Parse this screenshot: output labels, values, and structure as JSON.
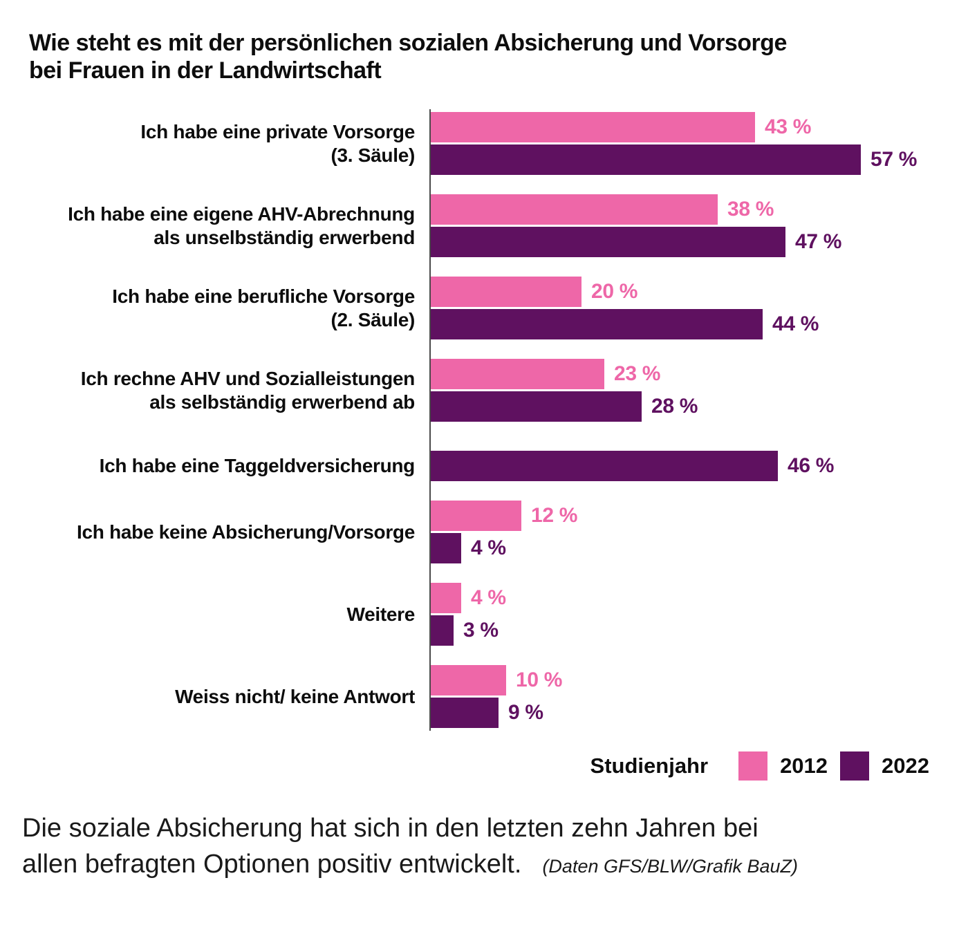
{
  "title": "Wie steht es mit der persönlichen sozialen Absicherung und Vorsorge\nbei Frauen in der Landwirtschaft",
  "chart_data": {
    "type": "bar",
    "orientation": "horizontal",
    "title": "Wie steht es mit der persönlichen sozialen Absicherung und Vorsorge bei Frauen in der Landwirtschaft",
    "categories": [
      "Ich habe eine private Vorsorge\n(3. Säule)",
      "Ich habe eine eigene AHV-Abrechnung\nals unselbständig erwerbend",
      "Ich habe eine berufliche Vorsorge\n(2. Säule)",
      "Ich rechne AHV und Sozialleistungen\nals selbständig erwerbend ab",
      "Ich habe eine Taggeldversicherung",
      "Ich habe keine Absicherung/Vorsorge",
      "Weitere",
      "Weiss nicht/ keine Antwort"
    ],
    "series": [
      {
        "name": "2012",
        "color": "#ee67a8",
        "values": [
          43,
          38,
          20,
          23,
          null,
          12,
          4,
          10
        ]
      },
      {
        "name": "2022",
        "color": "#5f1160",
        "values": [
          57,
          47,
          44,
          28,
          46,
          4,
          3,
          9
        ]
      }
    ],
    "value_suffix": " %",
    "xlim": [
      0,
      60
    ],
    "grid": false,
    "group_break_before": 4,
    "legend": {
      "label": "Studienjahr",
      "position": "bottom-right"
    }
  },
  "footer": {
    "text": "Die soziale Absicherung hat sich in den letzten zehn Jahren bei\nallen befragten Optionen positiv entwickelt.",
    "source": "(Daten GFS/BLW/Grafik BauZ)"
  }
}
